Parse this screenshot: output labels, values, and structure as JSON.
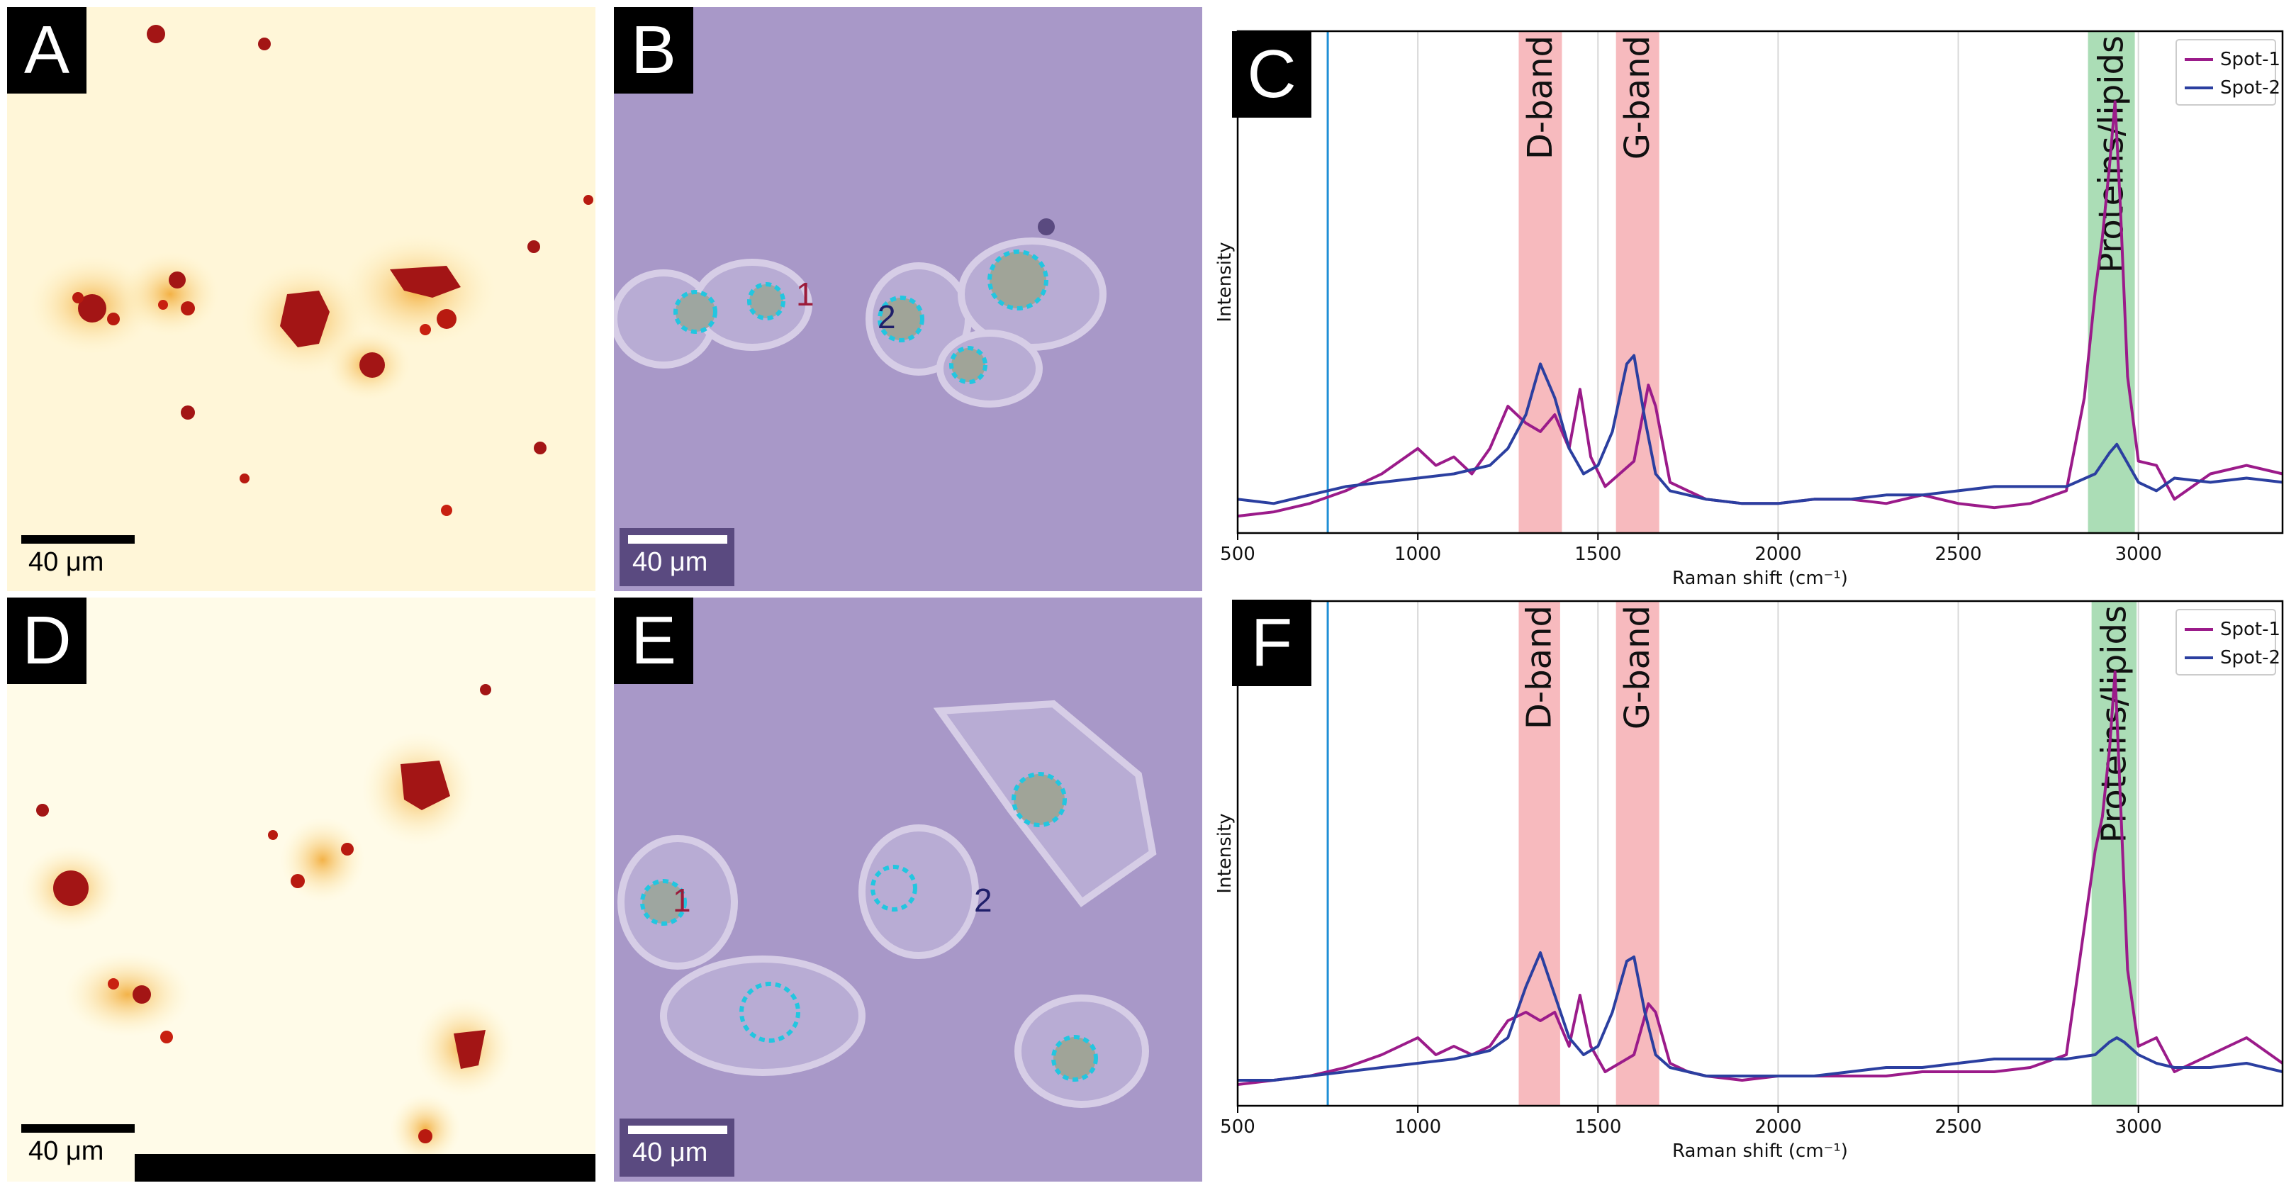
{
  "panels": {
    "A": {
      "label": "A",
      "scale": "40 μm"
    },
    "B": {
      "label": "B",
      "scale": "40 μm",
      "spot1": "1",
      "spot2": "2"
    },
    "C": {
      "label": "C"
    },
    "D": {
      "label": "D",
      "scale": "40 μm"
    },
    "E": {
      "label": "E",
      "scale": "40 μm",
      "spot1": "1",
      "spot2": "2"
    },
    "F": {
      "label": "F"
    }
  },
  "colors": {
    "spot1": "#9b1b8a",
    "spot2": "#2b3fa0",
    "band_d": "#f4a3a8",
    "band_p": "#8fd19e",
    "vline": "#1f8fd6",
    "heat_dark": "#a31515",
    "heat_bg": "#fff8e0",
    "micro_bg": "#a898c8"
  },
  "chart_data": [
    {
      "type": "line",
      "panel": "C",
      "xlabel": "Raman shift (cm⁻¹)",
      "ylabel": "Intensity",
      "xlim": [
        500,
        3400
      ],
      "xticks": [
        500,
        1000,
        1500,
        2000,
        2500,
        3000
      ],
      "grid": "vertical",
      "legend_position": "top-right",
      "bands": [
        {
          "label": "D-band",
          "range": [
            1280,
            1400
          ],
          "color": "pink"
        },
        {
          "label": "G-band",
          "range": [
            1550,
            1670
          ],
          "color": "pink"
        },
        {
          "label": "Proteins/lipids",
          "range": [
            2860,
            2990
          ],
          "color": "green"
        }
      ],
      "vline": 750,
      "series": [
        {
          "name": "Spot-1",
          "x": [
            500,
            600,
            700,
            800,
            900,
            1000,
            1050,
            1100,
            1150,
            1200,
            1250,
            1300,
            1340,
            1380,
            1420,
            1450,
            1480,
            1520,
            1560,
            1600,
            1640,
            1660,
            1700,
            1750,
            1800,
            1900,
            2000,
            2100,
            2200,
            2300,
            2400,
            2500,
            2600,
            2700,
            2800,
            2850,
            2880,
            2900,
            2920,
            2935,
            2950,
            2970,
            3000,
            3050,
            3100,
            3200,
            3300,
            3400
          ],
          "y": [
            0.02,
            0.03,
            0.05,
            0.08,
            0.12,
            0.18,
            0.14,
            0.16,
            0.12,
            0.18,
            0.28,
            0.24,
            0.22,
            0.26,
            0.18,
            0.32,
            0.16,
            0.09,
            0.12,
            0.15,
            0.33,
            0.28,
            0.1,
            0.08,
            0.06,
            0.05,
            0.05,
            0.06,
            0.06,
            0.05,
            0.07,
            0.05,
            0.04,
            0.05,
            0.08,
            0.3,
            0.55,
            0.68,
            0.85,
            1.0,
            0.75,
            0.35,
            0.15,
            0.14,
            0.06,
            0.12,
            0.14,
            0.12
          ]
        },
        {
          "name": "Spot-2",
          "x": [
            500,
            600,
            700,
            800,
            900,
            1000,
            1100,
            1200,
            1250,
            1300,
            1340,
            1380,
            1420,
            1460,
            1500,
            1540,
            1580,
            1600,
            1630,
            1660,
            1700,
            1800,
            1900,
            2000,
            2100,
            2200,
            2300,
            2400,
            2500,
            2600,
            2700,
            2800,
            2880,
            2920,
            2940,
            2960,
            3000,
            3050,
            3100,
            3200,
            3300,
            3400
          ],
          "y": [
            0.06,
            0.05,
            0.07,
            0.09,
            0.1,
            0.11,
            0.12,
            0.14,
            0.18,
            0.26,
            0.38,
            0.3,
            0.18,
            0.12,
            0.14,
            0.22,
            0.38,
            0.4,
            0.25,
            0.12,
            0.08,
            0.06,
            0.05,
            0.05,
            0.06,
            0.06,
            0.07,
            0.07,
            0.08,
            0.09,
            0.09,
            0.09,
            0.12,
            0.17,
            0.19,
            0.16,
            0.1,
            0.08,
            0.11,
            0.1,
            0.11,
            0.1
          ]
        }
      ]
    },
    {
      "type": "line",
      "panel": "F",
      "xlabel": "Raman shift (cm⁻¹)",
      "ylabel": "Intensity",
      "xlim": [
        500,
        3400
      ],
      "xticks": [
        500,
        1000,
        1500,
        2000,
        2500,
        3000
      ],
      "grid": "vertical",
      "legend_position": "top-right",
      "bands": [
        {
          "label": "D-band",
          "range": [
            1280,
            1395
          ],
          "color": "pink"
        },
        {
          "label": "G-band",
          "range": [
            1550,
            1670
          ],
          "color": "pink"
        },
        {
          "label": "Proteins/lipids",
          "range": [
            2870,
            2995
          ],
          "color": "green"
        }
      ],
      "vline": 750,
      "series": [
        {
          "name": "Spot-1",
          "x": [
            500,
            600,
            700,
            800,
            900,
            1000,
            1050,
            1100,
            1150,
            1200,
            1250,
            1300,
            1340,
            1380,
            1420,
            1450,
            1480,
            1520,
            1560,
            1600,
            1640,
            1660,
            1700,
            1750,
            1800,
            1900,
            2000,
            2100,
            2200,
            2300,
            2400,
            2500,
            2600,
            2700,
            2800,
            2850,
            2880,
            2900,
            2920,
            2935,
            2950,
            2970,
            3000,
            3050,
            3100,
            3200,
            3300,
            3400
          ],
          "y": [
            0.03,
            0.04,
            0.05,
            0.07,
            0.1,
            0.14,
            0.1,
            0.12,
            0.1,
            0.12,
            0.18,
            0.2,
            0.18,
            0.2,
            0.12,
            0.24,
            0.12,
            0.06,
            0.08,
            0.1,
            0.22,
            0.2,
            0.08,
            0.06,
            0.05,
            0.04,
            0.05,
            0.05,
            0.05,
            0.05,
            0.06,
            0.06,
            0.06,
            0.07,
            0.1,
            0.4,
            0.58,
            0.66,
            0.82,
            1.0,
            0.7,
            0.3,
            0.12,
            0.14,
            0.06,
            0.1,
            0.14,
            0.08
          ]
        },
        {
          "name": "Spot-2",
          "x": [
            500,
            600,
            700,
            800,
            900,
            1000,
            1100,
            1200,
            1250,
            1300,
            1340,
            1380,
            1420,
            1460,
            1500,
            1540,
            1580,
            1600,
            1630,
            1660,
            1700,
            1800,
            1900,
            2000,
            2100,
            2200,
            2300,
            2400,
            2500,
            2600,
            2700,
            2800,
            2880,
            2920,
            2940,
            2960,
            3000,
            3050,
            3100,
            3200,
            3300,
            3400
          ],
          "y": [
            0.04,
            0.04,
            0.05,
            0.06,
            0.07,
            0.08,
            0.09,
            0.11,
            0.14,
            0.26,
            0.34,
            0.24,
            0.14,
            0.1,
            0.12,
            0.2,
            0.32,
            0.33,
            0.2,
            0.1,
            0.07,
            0.05,
            0.05,
            0.05,
            0.05,
            0.06,
            0.07,
            0.07,
            0.08,
            0.09,
            0.09,
            0.09,
            0.1,
            0.13,
            0.14,
            0.13,
            0.1,
            0.08,
            0.07,
            0.07,
            0.08,
            0.06
          ]
        }
      ]
    }
  ]
}
